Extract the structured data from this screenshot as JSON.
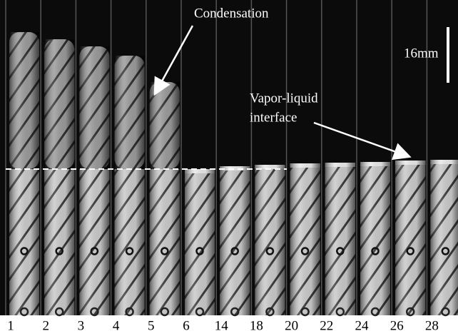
{
  "annotations": {
    "condensation": "Condensation",
    "scale": "16mm",
    "interface_line1": "Vapor-liquid",
    "interface_line2": "interface"
  },
  "frames": [
    "1",
    "2",
    "3",
    "4",
    "5",
    "6",
    "14",
    "18",
    "20",
    "22",
    "24",
    "26",
    "28"
  ]
}
